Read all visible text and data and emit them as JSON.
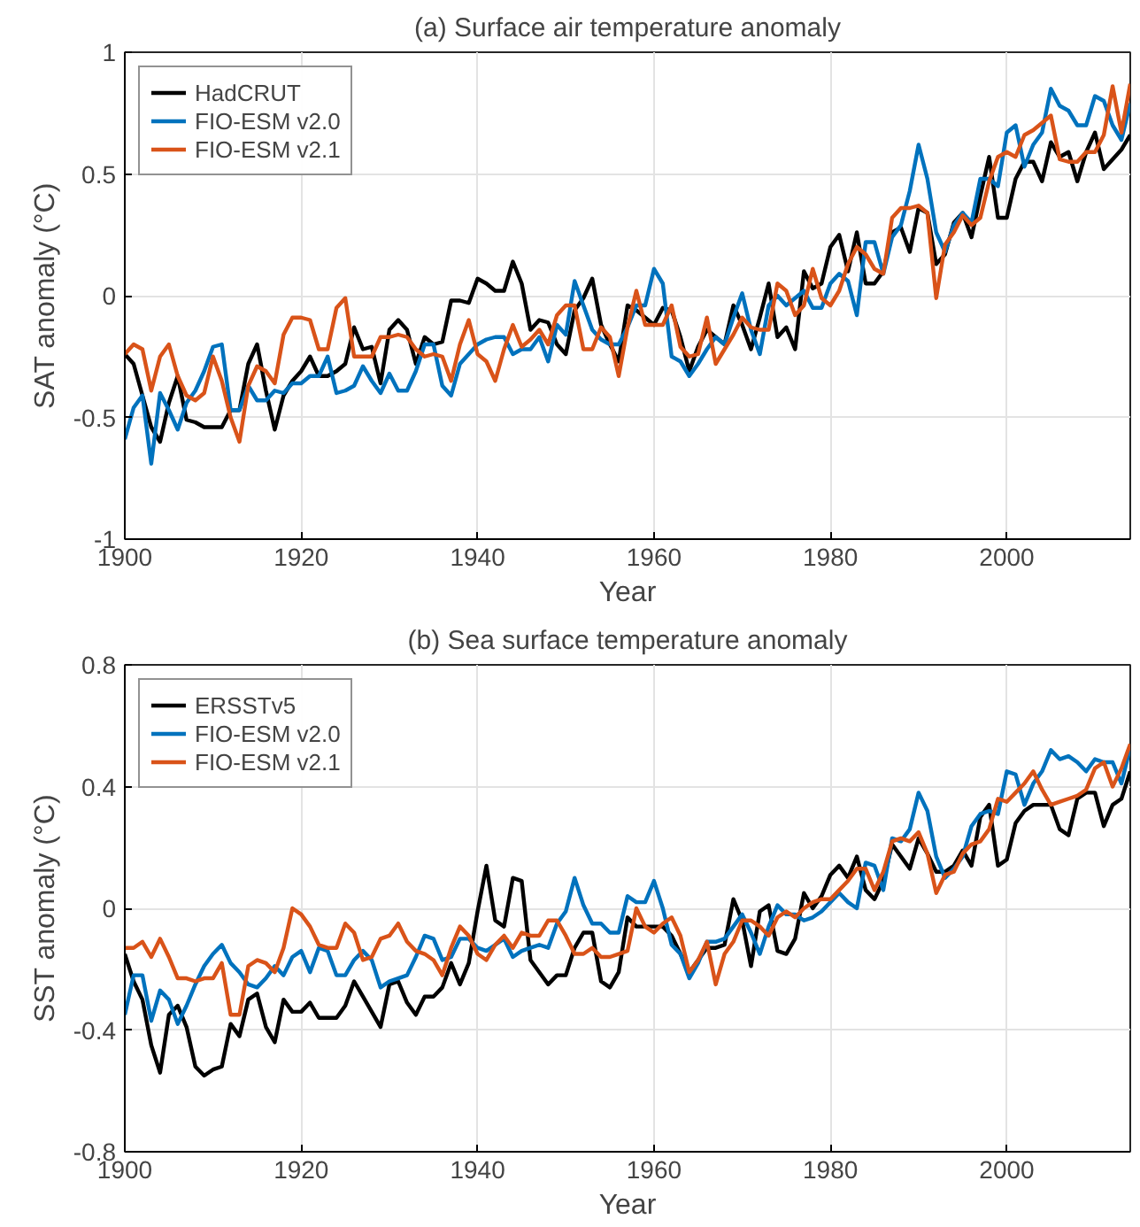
{
  "chart_data": [
    {
      "type": "line",
      "title": "(a) Surface air temperature anomaly",
      "xlabel": "Year",
      "ylabel": "SAT anomaly (°C)",
      "x": [
        1900,
        1901,
        1902,
        1903,
        1904,
        1905,
        1906,
        1907,
        1908,
        1909,
        1910,
        1911,
        1912,
        1913,
        1914,
        1915,
        1916,
        1917,
        1918,
        1919,
        1920,
        1921,
        1922,
        1923,
        1924,
        1925,
        1926,
        1927,
        1928,
        1929,
        1930,
        1931,
        1932,
        1933,
        1934,
        1935,
        1936,
        1937,
        1938,
        1939,
        1940,
        1941,
        1942,
        1943,
        1944,
        1945,
        1946,
        1947,
        1948,
        1949,
        1950,
        1951,
        1952,
        1953,
        1954,
        1955,
        1956,
        1957,
        1958,
        1959,
        1960,
        1961,
        1962,
        1963,
        1964,
        1965,
        1966,
        1967,
        1968,
        1969,
        1970,
        1971,
        1972,
        1973,
        1974,
        1975,
        1976,
        1977,
        1978,
        1979,
        1980,
        1981,
        1982,
        1983,
        1984,
        1985,
        1986,
        1987,
        1988,
        1989,
        1990,
        1991,
        1992,
        1993,
        1994,
        1995,
        1996,
        1997,
        1998,
        1999,
        2000,
        2001,
        2002,
        2003,
        2004,
        2005,
        2006,
        2007,
        2008,
        2009,
        2010,
        2011,
        2012,
        2013,
        2014
      ],
      "xlim": [
        1900,
        2014
      ],
      "xticks": [
        1900,
        1920,
        1940,
        1960,
        1980,
        2000
      ],
      "ylim": [
        -1,
        1
      ],
      "yticks": [
        -1,
        -0.5,
        0,
        0.5,
        1
      ],
      "grid": true,
      "legend": "top left",
      "line_style": "solid",
      "series": [
        {
          "name": "HadCRUT",
          "color": "#000000",
          "values": [
            -0.24,
            -0.28,
            -0.41,
            -0.54,
            -0.6,
            -0.44,
            -0.33,
            -0.51,
            -0.52,
            -0.54,
            -0.54,
            -0.54,
            -0.47,
            -0.47,
            -0.28,
            -0.2,
            -0.39,
            -0.55,
            -0.41,
            -0.35,
            -0.31,
            -0.25,
            -0.33,
            -0.33,
            -0.31,
            -0.28,
            -0.13,
            -0.22,
            -0.21,
            -0.36,
            -0.14,
            -0.1,
            -0.14,
            -0.28,
            -0.17,
            -0.2,
            -0.19,
            -0.02,
            -0.02,
            -0.03,
            0.07,
            0.05,
            0.02,
            0.02,
            0.14,
            0.05,
            -0.14,
            -0.1,
            -0.11,
            -0.2,
            -0.24,
            -0.06,
            -0.01,
            0.07,
            -0.12,
            -0.2,
            -0.27,
            -0.04,
            -0.06,
            -0.09,
            -0.12,
            -0.05,
            -0.06,
            -0.17,
            -0.31,
            -0.21,
            -0.14,
            -0.17,
            -0.2,
            -0.04,
            -0.12,
            -0.22,
            -0.09,
            0.05,
            -0.17,
            -0.13,
            -0.22,
            0.1,
            0.03,
            0.05,
            0.2,
            0.25,
            0.1,
            0.26,
            0.05,
            0.05,
            0.1,
            0.26,
            0.28,
            0.18,
            0.36,
            0.34,
            0.13,
            0.17,
            0.3,
            0.34,
            0.24,
            0.41,
            0.57,
            0.32,
            0.32,
            0.48,
            0.55,
            0.55,
            0.47,
            0.63,
            0.57,
            0.59,
            0.47,
            0.59,
            0.67,
            0.52,
            0.56,
            0.6,
            0.66
          ]
        },
        {
          "name": "FIO-ESM v2.0",
          "color": "#0072bd",
          "values": [
            -0.59,
            -0.46,
            -0.41,
            -0.69,
            -0.4,
            -0.47,
            -0.55,
            -0.44,
            -0.39,
            -0.31,
            -0.21,
            -0.2,
            -0.47,
            -0.47,
            -0.37,
            -0.43,
            -0.43,
            -0.39,
            -0.4,
            -0.36,
            -0.36,
            -0.33,
            -0.33,
            -0.25,
            -0.4,
            -0.39,
            -0.37,
            -0.29,
            -0.35,
            -0.4,
            -0.32,
            -0.39,
            -0.39,
            -0.31,
            -0.2,
            -0.2,
            -0.37,
            -0.41,
            -0.28,
            -0.24,
            -0.2,
            -0.18,
            -0.17,
            -0.17,
            -0.24,
            -0.22,
            -0.22,
            -0.17,
            -0.27,
            -0.12,
            -0.16,
            0.06,
            -0.04,
            -0.14,
            -0.18,
            -0.2,
            -0.2,
            -0.13,
            -0.04,
            -0.04,
            0.11,
            0.05,
            -0.25,
            -0.27,
            -0.33,
            -0.28,
            -0.22,
            -0.17,
            -0.2,
            -0.09,
            0.01,
            -0.14,
            -0.24,
            -0.04,
            0,
            -0.04,
            -0.01,
            0.02,
            -0.05,
            -0.05,
            0.05,
            0.09,
            0.06,
            -0.08,
            0.22,
            0.22,
            0.09,
            0.24,
            0.29,
            0.43,
            0.62,
            0.48,
            0.26,
            0.18,
            0.29,
            0.34,
            0.3,
            0.48,
            0.48,
            0.45,
            0.67,
            0.7,
            0.53,
            0.62,
            0.67,
            0.85,
            0.78,
            0.76,
            0.7,
            0.7,
            0.82,
            0.8,
            0.7,
            0.64,
            0.79
          ]
        },
        {
          "name": "FIO-ESM v2.1",
          "color": "#d95319",
          "values": [
            -0.24,
            -0.2,
            -0.22,
            -0.39,
            -0.25,
            -0.2,
            -0.33,
            -0.41,
            -0.43,
            -0.4,
            -0.25,
            -0.35,
            -0.5,
            -0.6,
            -0.37,
            -0.29,
            -0.31,
            -0.36,
            -0.16,
            -0.09,
            -0.09,
            -0.1,
            -0.22,
            -0.22,
            -0.05,
            -0.01,
            -0.25,
            -0.25,
            -0.25,
            -0.17,
            -0.17,
            -0.16,
            -0.17,
            -0.22,
            -0.25,
            -0.24,
            -0.25,
            -0.35,
            -0.2,
            -0.1,
            -0.24,
            -0.27,
            -0.35,
            -0.22,
            -0.12,
            -0.21,
            -0.18,
            -0.14,
            -0.2,
            -0.08,
            -0.04,
            -0.04,
            -0.22,
            -0.22,
            -0.13,
            -0.17,
            -0.33,
            -0.13,
            0.02,
            -0.12,
            -0.12,
            -0.12,
            -0.04,
            -0.21,
            -0.25,
            -0.24,
            -0.09,
            -0.28,
            -0.22,
            -0.16,
            -0.09,
            -0.13,
            -0.14,
            -0.14,
            0.05,
            0.02,
            -0.08,
            -0.04,
            0.11,
            -0.01,
            -0.04,
            0.02,
            0.13,
            0.2,
            0.17,
            0.11,
            0.09,
            0.32,
            0.36,
            0.36,
            0.37,
            0.34,
            -0.01,
            0.21,
            0.26,
            0.33,
            0.29,
            0.32,
            0.47,
            0.57,
            0.59,
            0.57,
            0.66,
            0.68,
            0.71,
            0.74,
            0.56,
            0.55,
            0.55,
            0.59,
            0.59,
            0.66,
            0.86,
            0.67,
            0.87
          ]
        }
      ]
    },
    {
      "type": "line",
      "title": "(b) Sea surface temperature anomaly",
      "xlabel": "Year",
      "ylabel": "SST anomaly (°C)",
      "x": [
        1900,
        1901,
        1902,
        1903,
        1904,
        1905,
        1906,
        1907,
        1908,
        1909,
        1910,
        1911,
        1912,
        1913,
        1914,
        1915,
        1916,
        1917,
        1918,
        1919,
        1920,
        1921,
        1922,
        1923,
        1924,
        1925,
        1926,
        1927,
        1928,
        1929,
        1930,
        1931,
        1932,
        1933,
        1934,
        1935,
        1936,
        1937,
        1938,
        1939,
        1940,
        1941,
        1942,
        1943,
        1944,
        1945,
        1946,
        1947,
        1948,
        1949,
        1950,
        1951,
        1952,
        1953,
        1954,
        1955,
        1956,
        1957,
        1958,
        1959,
        1960,
        1961,
        1962,
        1963,
        1964,
        1965,
        1966,
        1967,
        1968,
        1969,
        1970,
        1971,
        1972,
        1973,
        1974,
        1975,
        1976,
        1977,
        1978,
        1979,
        1980,
        1981,
        1982,
        1983,
        1984,
        1985,
        1986,
        1987,
        1988,
        1989,
        1990,
        1991,
        1992,
        1993,
        1994,
        1995,
        1996,
        1997,
        1998,
        1999,
        2000,
        2001,
        2002,
        2003,
        2004,
        2005,
        2006,
        2007,
        2008,
        2009,
        2010,
        2011,
        2012,
        2013,
        2014
      ],
      "xlim": [
        1900,
        2014
      ],
      "xticks": [
        1900,
        1920,
        1940,
        1960,
        1980,
        2000
      ],
      "ylim": [
        -0.8,
        0.8
      ],
      "yticks": [
        -0.8,
        -0.4,
        0,
        0.4,
        0.8
      ],
      "grid": true,
      "legend": "top left",
      "line_style": "solid",
      "series": [
        {
          "name": "ERSSTv5",
          "color": "#000000",
          "values": [
            -0.15,
            -0.24,
            -0.3,
            -0.45,
            -0.54,
            -0.35,
            -0.32,
            -0.39,
            -0.52,
            -0.55,
            -0.53,
            -0.52,
            -0.38,
            -0.42,
            -0.3,
            -0.28,
            -0.39,
            -0.44,
            -0.3,
            -0.34,
            -0.34,
            -0.31,
            -0.36,
            -0.36,
            -0.36,
            -0.32,
            -0.24,
            -0.29,
            -0.34,
            -0.39,
            -0.25,
            -0.24,
            -0.31,
            -0.35,
            -0.29,
            -0.29,
            -0.26,
            -0.18,
            -0.25,
            -0.18,
            -0.01,
            0.14,
            -0.04,
            -0.06,
            0.1,
            0.09,
            -0.17,
            -0.21,
            -0.25,
            -0.22,
            -0.22,
            -0.13,
            -0.08,
            -0.08,
            -0.24,
            -0.26,
            -0.21,
            -0.03,
            -0.06,
            -0.06,
            -0.06,
            -0.06,
            -0.09,
            -0.15,
            -0.21,
            -0.17,
            -0.13,
            -0.13,
            -0.12,
            0.03,
            -0.04,
            -0.19,
            -0.01,
            0.01,
            -0.14,
            -0.15,
            -0.1,
            0.05,
            0,
            0.04,
            0.11,
            0.14,
            0.1,
            0.17,
            0.06,
            0.03,
            0.09,
            0.21,
            0.17,
            0.13,
            0.23,
            0.18,
            0.12,
            0.12,
            0.14,
            0.19,
            0.14,
            0.3,
            0.34,
            0.14,
            0.16,
            0.28,
            0.32,
            0.34,
            0.34,
            0.34,
            0.26,
            0.24,
            0.36,
            0.38,
            0.38,
            0.27,
            0.34,
            0.36,
            0.45
          ]
        },
        {
          "name": "FIO-ESM v2.0",
          "color": "#0072bd",
          "values": [
            -0.35,
            -0.22,
            -0.22,
            -0.37,
            -0.27,
            -0.3,
            -0.38,
            -0.32,
            -0.25,
            -0.19,
            -0.15,
            -0.12,
            -0.18,
            -0.21,
            -0.25,
            -0.26,
            -0.23,
            -0.19,
            -0.22,
            -0.16,
            -0.14,
            -0.21,
            -0.13,
            -0.14,
            -0.22,
            -0.22,
            -0.17,
            -0.14,
            -0.17,
            -0.26,
            -0.24,
            -0.23,
            -0.22,
            -0.16,
            -0.09,
            -0.1,
            -0.17,
            -0.16,
            -0.1,
            -0.1,
            -0.13,
            -0.14,
            -0.12,
            -0.1,
            -0.16,
            -0.14,
            -0.13,
            -0.12,
            -0.13,
            -0.05,
            -0.01,
            0.1,
            0.01,
            -0.05,
            -0.05,
            -0.08,
            -0.08,
            0.04,
            0.02,
            0.02,
            0.09,
            0,
            -0.12,
            -0.15,
            -0.23,
            -0.18,
            -0.11,
            -0.11,
            -0.1,
            -0.06,
            -0.02,
            -0.08,
            -0.15,
            -0.06,
            0.01,
            -0.02,
            -0.02,
            -0.04,
            -0.03,
            -0.01,
            0.02,
            0.05,
            0.02,
            0,
            0.15,
            0.14,
            0.06,
            0.23,
            0.22,
            0.26,
            0.38,
            0.32,
            0.17,
            0.1,
            0.13,
            0.17,
            0.27,
            0.31,
            0.32,
            0.31,
            0.45,
            0.44,
            0.34,
            0.41,
            0.45,
            0.52,
            0.49,
            0.5,
            0.48,
            0.45,
            0.49,
            0.48,
            0.48,
            0.41,
            0.53
          ]
        },
        {
          "name": "FIO-ESM v2.1",
          "color": "#d95319",
          "values": [
            -0.13,
            -0.13,
            -0.11,
            -0.16,
            -0.1,
            -0.16,
            -0.23,
            -0.23,
            -0.24,
            -0.23,
            -0.23,
            -0.18,
            -0.35,
            -0.35,
            -0.19,
            -0.17,
            -0.18,
            -0.21,
            -0.13,
            0,
            -0.02,
            -0.06,
            -0.12,
            -0.13,
            -0.13,
            -0.05,
            -0.08,
            -0.17,
            -0.16,
            -0.1,
            -0.09,
            -0.05,
            -0.11,
            -0.14,
            -0.15,
            -0.17,
            -0.22,
            -0.13,
            -0.06,
            -0.09,
            -0.15,
            -0.17,
            -0.12,
            -0.09,
            -0.13,
            -0.08,
            -0.09,
            -0.09,
            -0.04,
            -0.04,
            -0.09,
            -0.15,
            -0.15,
            -0.13,
            -0.16,
            -0.16,
            -0.15,
            -0.14,
            0,
            -0.06,
            -0.08,
            -0.05,
            -0.03,
            -0.09,
            -0.21,
            -0.17,
            -0.11,
            -0.25,
            -0.15,
            -0.11,
            -0.04,
            -0.04,
            -0.06,
            -0.09,
            -0.03,
            -0.01,
            -0.03,
            0,
            0.02,
            0.03,
            0.03,
            0.06,
            0.09,
            0.13,
            0.13,
            0.06,
            0.12,
            0.22,
            0.23,
            0.22,
            0.25,
            0.18,
            0.05,
            0.11,
            0.12,
            0.18,
            0.21,
            0.22,
            0.26,
            0.36,
            0.35,
            0.38,
            0.41,
            0.45,
            0.39,
            0.34,
            0.35,
            0.36,
            0.37,
            0.39,
            0.46,
            0.48,
            0.4,
            0.46,
            0.54
          ]
        }
      ]
    }
  ]
}
